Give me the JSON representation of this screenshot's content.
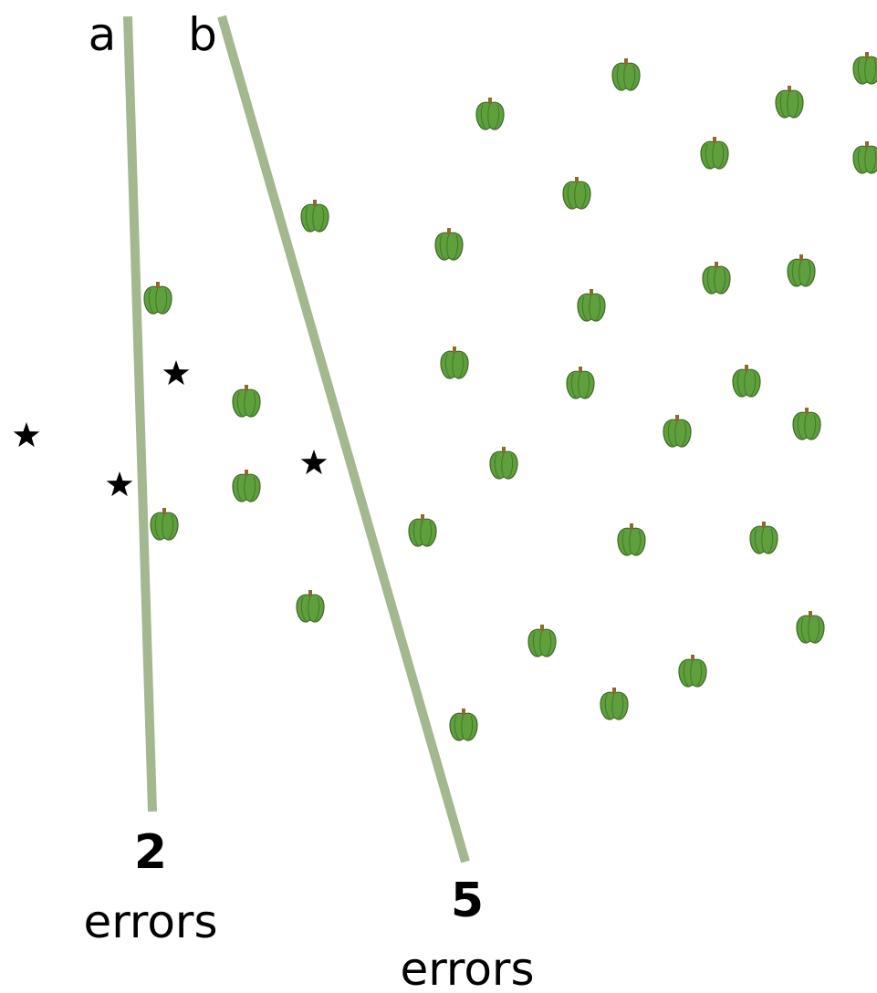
{
  "lines": [
    {
      "label": "a",
      "count": 2,
      "unit": "errors"
    },
    {
      "label": "b",
      "count": 5,
      "unit": "errors"
    }
  ]
}
